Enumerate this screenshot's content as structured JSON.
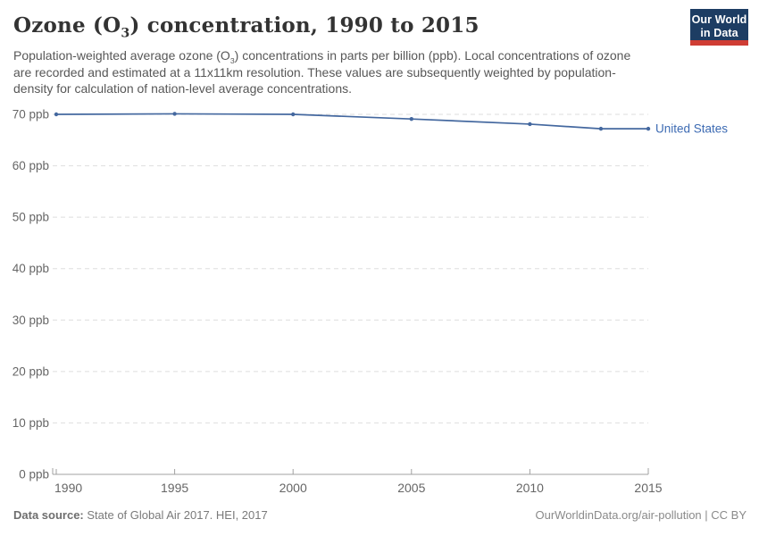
{
  "header": {
    "title_pre": "Ozone (O",
    "title_sub": "3",
    "title_post": ") concentration, 1990 to 2015",
    "subtitle_pre": "Population-weighted average ozone (O",
    "subtitle_sub": "3",
    "subtitle_post": ") concentrations in parts per billion (ppb). Local concentrations of ozone are recorded and estimated at a 11x11km resolution. These values are subsequently weighted by population-density for calculation of nation-level average concentrations.",
    "logo": {
      "line1": "Our World",
      "line2": "in Data",
      "bg_color": "#1d3d63",
      "accent_color": "#cf3d34"
    }
  },
  "chart_data": {
    "type": "line",
    "title": "Ozone (O₃) concentration, 1990 to 2015",
    "x": [
      1990,
      1995,
      2000,
      2005,
      2010,
      2013,
      2015
    ],
    "series": [
      {
        "name": "United States",
        "values": [
          70.0,
          70.1,
          70.0,
          69.1,
          68.1,
          67.2,
          67.2
        ],
        "color": "#44689f",
        "label_color": "#3d6bb3"
      }
    ],
    "unit": "ppb",
    "ylim": [
      0,
      70
    ],
    "ytick_step": 10,
    "xticks": [
      1990,
      1995,
      2000,
      2005,
      2010,
      2015
    ],
    "grid": "horizontal-dashed",
    "legend": "end-of-line-label",
    "xlabel": "",
    "ylabel": ""
  },
  "colors": {
    "grid": "#dedede",
    "axis": "#a1a1a1",
    "tick_label": "#666666"
  },
  "footer": {
    "datasource_label": "Data source:",
    "datasource_value": " State of Global Air 2017. HEI, 2017",
    "credit": "OurWorldinData.org/air-pollution | CC BY"
  }
}
